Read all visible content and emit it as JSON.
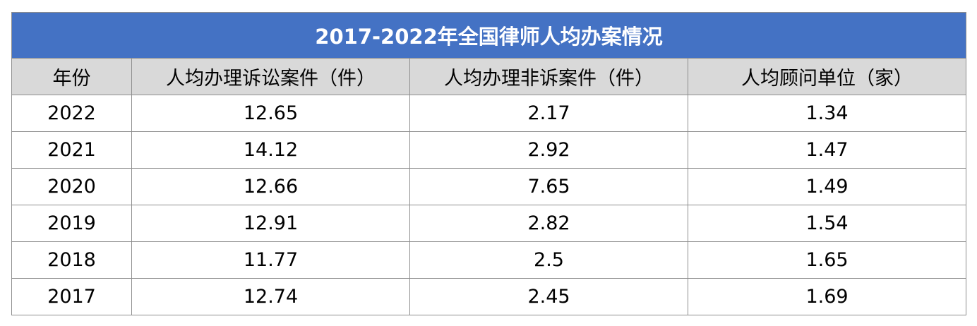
{
  "chart_data": {
    "type": "table",
    "title": "2017-2022年全国律师人均办案情况",
    "columns": [
      "年份",
      "人均办理诉讼案件（件）",
      "人均办理非诉案件（件）",
      "人均顾问单位（家）"
    ],
    "rows": [
      [
        "2022",
        "12.65",
        "2.17",
        "1.34"
      ],
      [
        "2021",
        "14.12",
        "2.92",
        "1.47"
      ],
      [
        "2020",
        "12.66",
        "7.65",
        "1.49"
      ],
      [
        "2019",
        "12.91",
        "2.82",
        "1.54"
      ],
      [
        "2018",
        "11.77",
        "2.5",
        "1.65"
      ],
      [
        "2017",
        "12.74",
        "2.45",
        "1.69"
      ]
    ]
  },
  "colors": {
    "title_bg": "#4472c4",
    "header_bg": "#d9d9d9",
    "border": "#8e8e8e"
  }
}
